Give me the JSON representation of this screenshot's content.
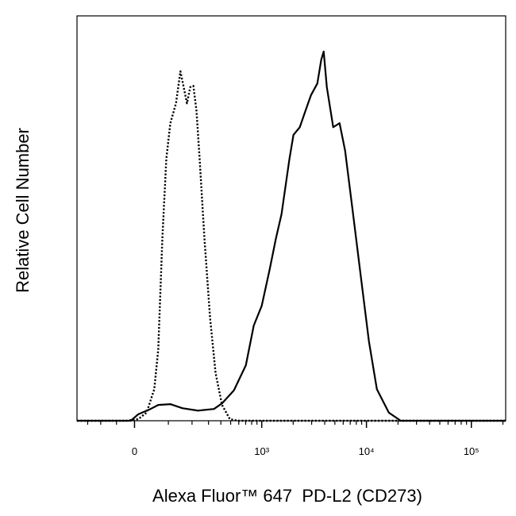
{
  "chart_data": {
    "type": "line",
    "x_label": "Alexa Fluor™ 647  PD-L2 (CD273)",
    "y_label": "Relative Cell Number",
    "xscale": "biexponential",
    "xlim": [
      -200,
      212500
    ],
    "ylim": [
      0,
      100
    ],
    "xticks": [
      0,
      {
        "value": 1000,
        "label": "10³"
      },
      {
        "value": 10000,
        "label": "10⁴"
      },
      {
        "value": 100000,
        "label": "10⁵"
      }
    ],
    "xminorticks": [
      -150,
      -100,
      -50,
      100,
      200,
      300,
      400,
      500,
      600,
      700,
      800,
      900,
      2000,
      3000,
      4000,
      5000,
      6000,
      7000,
      8000,
      9000,
      20000,
      30000,
      40000,
      50000,
      60000,
      70000,
      80000,
      90000,
      200000
    ],
    "series": [
      {
        "color": "#000000",
        "dash": "dotted",
        "x": [
          -200,
          -22,
          10,
          33,
          55,
          67,
          80,
          93,
          107,
          128,
          146,
          160,
          175,
          191,
          207,
          224,
          242,
          272,
          311,
          354,
          411,
          491,
          588,
          212500
        ],
        "values": [
          0,
          0,
          0.4,
          2.0,
          7.8,
          17.6,
          45.1,
          64.7,
          73.5,
          78.4,
          86.3,
          82.4,
          78.4,
          82.4,
          82.7,
          76.5,
          64.7,
          45.1,
          25.5,
          11.8,
          3.9,
          0.4,
          0,
          0
        ]
      },
      {
        "color": "#000000",
        "dash": "solid",
        "x": [
          -200,
          -10,
          10,
          44,
          67,
          107,
          154,
          232,
          341,
          411,
          538,
          703,
          838,
          1000,
          1190,
          1370,
          1547,
          1843,
          2012,
          2313,
          2615,
          2957,
          3400,
          3708,
          3910,
          4190,
          4820,
          5540,
          6260,
          7460,
          8870,
          10560,
          12570,
          16340,
          21230,
          212500
        ],
        "values": [
          0,
          0,
          1.6,
          2.9,
          3.9,
          4.1,
          3.1,
          2.5,
          2.9,
          4.3,
          7.5,
          13.7,
          23.5,
          28.4,
          37.3,
          45.1,
          51.0,
          64.7,
          70.6,
          72.5,
          76.5,
          80.4,
          83.3,
          89.2,
          91.2,
          82.4,
          72.5,
          73.5,
          66.7,
          51.0,
          35.3,
          19.6,
          7.8,
          2.0,
          0,
          0
        ]
      }
    ]
  }
}
